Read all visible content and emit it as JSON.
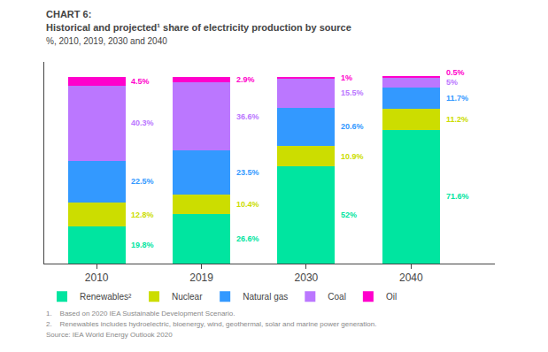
{
  "chart_data": {
    "type": "bar",
    "title": "CHART 6:",
    "subtitle": "Historical and projected¹ share of electricity production by source",
    "ylabel": "%, 2010, 2019, 2030 and 2040",
    "categories": [
      "2010",
      "2019",
      "2030",
      "2040"
    ],
    "stacked": true,
    "data_labels": true,
    "tick_labels": "x",
    "grid": false,
    "legend": "bottom",
    "ylim": [
      0,
      108
    ],
    "series": [
      {
        "name": "Renewables²",
        "color": "#00e5a0",
        "values": [
          19.8,
          26.6,
          52.0,
          71.6
        ],
        "value_labels": [
          "19.8%",
          "26.6%",
          "52%",
          "71.6%"
        ]
      },
      {
        "name": "Nuclear",
        "color": "#ccdd00",
        "values": [
          12.8,
          10.4,
          10.9,
          11.2
        ],
        "value_labels": [
          "12.8%",
          "10.4%",
          "10.9%",
          "11.2%"
        ]
      },
      {
        "name": "Natural gas",
        "color": "#3399ff",
        "values": [
          22.5,
          23.5,
          20.6,
          11.7
        ],
        "value_labels": [
          "22.5%",
          "23.5%",
          "20.6%",
          "11.7%"
        ]
      },
      {
        "name": "Coal",
        "color": "#bb77ff",
        "values": [
          40.3,
          36.6,
          15.5,
          5.0
        ],
        "value_labels": [
          "40.3%",
          "36.6%",
          "15.5%",
          "5%"
        ]
      },
      {
        "name": "Oil",
        "color": "#ff00cc",
        "values": [
          4.5,
          2.9,
          1.0,
          0.5
        ],
        "value_labels": [
          "4.5%",
          "2.9%",
          "1%",
          "0.5%"
        ]
      }
    ],
    "annotations": [
      "1.    Based on 2020 IEA Sustainable Development Scenario.",
      "2.    Renewables includes hydroelectric, bioenergy, wind, geothermal, solar and marine power generation.",
      "Source: IEA World Energy Outlook 2020"
    ]
  }
}
